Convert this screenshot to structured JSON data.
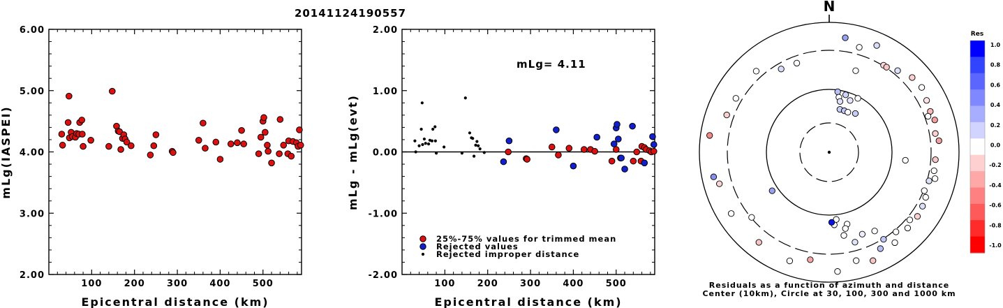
{
  "title": "20141124190557",
  "panel1": {
    "xlabel": "Epicentral distance (km)",
    "ylabel": "mLg(IASPEI)",
    "xlim": [
      0,
      590
    ],
    "ylim": [
      2.0,
      6.0
    ],
    "xticks": [
      {
        "v": 100,
        "t": "100"
      },
      {
        "v": 200,
        "t": "200"
      },
      {
        "v": 300,
        "t": "300"
      },
      {
        "v": 400,
        "t": "400"
      },
      {
        "v": 500,
        "t": "500"
      }
    ],
    "yticks": [
      {
        "v": 2.0,
        "t": "2.00"
      },
      {
        "v": 3.0,
        "t": "3.00"
      },
      {
        "v": 4.0,
        "t": "4.00"
      },
      {
        "v": 5.0,
        "t": "5.00"
      },
      {
        "v": 6.0,
        "t": "6.00"
      }
    ],
    "point_color": "#dd1010",
    "points": [
      [
        30,
        4.29
      ],
      [
        32,
        4.11
      ],
      [
        45,
        4.48
      ],
      [
        47,
        4.91
      ],
      [
        48,
        4.23
      ],
      [
        52,
        4.32
      ],
      [
        55,
        4.25
      ],
      [
        62,
        4.24
      ],
      [
        65,
        4.3
      ],
      [
        70,
        4.29
      ],
      [
        72,
        4.48
      ],
      [
        77,
        4.52
      ],
      [
        78,
        4.29
      ],
      [
        80,
        4.09
      ],
      [
        98,
        4.19
      ],
      [
        140,
        4.09
      ],
      [
        148,
        4.99
      ],
      [
        158,
        4.42
      ],
      [
        162,
        4.34
      ],
      [
        165,
        4.33
      ],
      [
        168,
        4.04
      ],
      [
        172,
        4.22
      ],
      [
        175,
        4.28
      ],
      [
        178,
        4.21
      ],
      [
        182,
        4.16
      ],
      [
        192,
        4.1
      ],
      [
        237,
        3.95
      ],
      [
        245,
        4.1
      ],
      [
        250,
        4.28
      ],
      [
        288,
        4.01
      ],
      [
        290,
        3.99
      ],
      [
        350,
        4.19
      ],
      [
        360,
        4.47
      ],
      [
        365,
        4.06
      ],
      [
        390,
        4.16
      ],
      [
        400,
        3.88
      ],
      [
        425,
        4.13
      ],
      [
        440,
        4.15
      ],
      [
        450,
        4.35
      ],
      [
        455,
        4.13
      ],
      [
        490,
        3.97
      ],
      [
        495,
        4.24
      ],
      [
        500,
        4.5
      ],
      [
        502,
        4.56
      ],
      [
        505,
        4.32
      ],
      [
        510,
        4.11
      ],
      [
        512,
        4.01
      ],
      [
        520,
        3.82
      ],
      [
        538,
        3.97
      ],
      [
        540,
        4.53
      ],
      [
        548,
        4.11
      ],
      [
        558,
        3.97
      ],
      [
        560,
        4.18
      ],
      [
        566,
        3.93
      ],
      [
        570,
        4.17
      ],
      [
        578,
        4.15
      ],
      [
        582,
        4.09
      ],
      [
        585,
        4.36
      ],
      [
        588,
        4.11
      ]
    ]
  },
  "panel2": {
    "xlabel": "Epicentral distance (km)",
    "ylabel": "mLg - mLg(evt)",
    "xlim": [
      0,
      590
    ],
    "ylim": [
      -2.0,
      2.0
    ],
    "xticks": [
      {
        "v": 100,
        "t": "100"
      },
      {
        "v": 200,
        "t": "200"
      },
      {
        "v": 300,
        "t": "300"
      },
      {
        "v": 400,
        "t": "400"
      },
      {
        "v": 500,
        "t": "500"
      }
    ],
    "yticks": [
      {
        "v": -2.0,
        "t": "-2.00"
      },
      {
        "v": -1.0,
        "t": "-1.00"
      },
      {
        "v": 0.0,
        "t": "0.00"
      },
      {
        "v": 1.0,
        "t": "1.00"
      },
      {
        "v": 2.0,
        "t": "2.00"
      }
    ],
    "mlg_label": "mLg= 4.11",
    "red_color": "#dd1010",
    "blue_color": "#1020cc",
    "legend": [
      {
        "kind": "red",
        "label": "25%-75% values for trimmed mean"
      },
      {
        "kind": "blue",
        "label": "Rejected values"
      },
      {
        "kind": "black",
        "label": "Rejected improper distance"
      }
    ],
    "red_points": [
      [
        248,
        0.0
      ],
      [
        290,
        -0.11
      ],
      [
        292,
        -0.12
      ],
      [
        350,
        0.08
      ],
      [
        365,
        -0.05
      ],
      [
        390,
        0.06
      ],
      [
        425,
        0.04
      ],
      [
        440,
        0.04
      ],
      [
        450,
        0.01
      ],
      [
        490,
        -0.15
      ],
      [
        500,
        0.04
      ],
      [
        510,
        -0.1
      ],
      [
        540,
        -0.15
      ],
      [
        548,
        0.0
      ],
      [
        558,
        -0.15
      ],
      [
        560,
        0.09
      ],
      [
        566,
        0.07
      ],
      [
        570,
        0.04
      ],
      [
        578,
        0.02
      ],
      [
        582,
        0.0
      ],
      [
        588,
        0.01
      ]
    ],
    "blue_points": [
      [
        237,
        -0.16
      ],
      [
        250,
        0.18
      ],
      [
        360,
        0.36
      ],
      [
        400,
        -0.23
      ],
      [
        455,
        0.24
      ],
      [
        495,
        0.13
      ],
      [
        500,
        0.39
      ],
      [
        502,
        0.45
      ],
      [
        505,
        0.21
      ],
      [
        512,
        -0.1
      ],
      [
        520,
        -0.28
      ],
      [
        538,
        0.42
      ],
      [
        566,
        -0.18
      ],
      [
        585,
        0.25
      ],
      [
        588,
        0.12
      ]
    ],
    "black_points": [
      [
        30,
        0.18
      ],
      [
        32,
        0.0
      ],
      [
        40,
        0.1
      ],
      [
        45,
        0.37
      ],
      [
        47,
        0.8
      ],
      [
        48,
        0.12
      ],
      [
        52,
        0.21
      ],
      [
        55,
        0.14
      ],
      [
        62,
        0.13
      ],
      [
        65,
        0.19
      ],
      [
        70,
        0.18
      ],
      [
        72,
        0.37
      ],
      [
        77,
        0.41
      ],
      [
        78,
        0.18
      ],
      [
        80,
        -0.02
      ],
      [
        98,
        0.08
      ],
      [
        140,
        -0.02
      ],
      [
        148,
        0.88
      ],
      [
        158,
        0.31
      ],
      [
        162,
        0.23
      ],
      [
        165,
        0.22
      ],
      [
        168,
        -0.07
      ],
      [
        172,
        0.11
      ],
      [
        175,
        0.17
      ],
      [
        178,
        0.1
      ],
      [
        182,
        0.05
      ],
      [
        192,
        -0.01
      ]
    ]
  },
  "polar": {
    "north_label": "N",
    "caption_line1": "Residuals as a function of azimuth and distance",
    "caption_line2": "Center (10km), Circle at 30, 100, 300 and 1000 km",
    "colorbar_title": "Res",
    "colorbar_ticks": [
      "1.0",
      "0.8",
      "0.6",
      "0.4",
      "0.2",
      "0.0",
      "-0.2",
      "-0.4",
      "-0.6",
      "-0.8",
      "-1.0"
    ],
    "stations": [
      {
        "az": 8,
        "d": 0.89,
        "c": "#9aa2f0"
      },
      {
        "az": 16,
        "d": 0.84,
        "c": "#ffffff"
      },
      {
        "az": 24,
        "d": 0.9,
        "c": "#d8dcf8"
      },
      {
        "az": 32,
        "d": 0.79,
        "c": "#fad8d8"
      },
      {
        "az": 34,
        "d": 0.79,
        "c": "#f8c8c8"
      },
      {
        "az": 40,
        "d": 0.82,
        "c": "#dcdff8"
      },
      {
        "az": 48,
        "d": 0.86,
        "c": "#fad0d0"
      },
      {
        "az": 55,
        "d": 0.87,
        "c": "#ffffff"
      },
      {
        "az": 62,
        "d": 0.85,
        "c": "#fae4e4"
      },
      {
        "az": 68,
        "d": 0.84,
        "c": "#f8b8b8"
      },
      {
        "az": 70,
        "d": 0.81,
        "c": "#ffffff"
      },
      {
        "az": 73,
        "d": 0.85,
        "c": "#f4a0a0"
      },
      {
        "az": 80,
        "d": 0.83,
        "c": "#fad0d0"
      },
      {
        "az": 84,
        "d": 0.85,
        "c": "#f0a0a0"
      },
      {
        "az": 94,
        "d": 0.82,
        "c": "#f8c8c8"
      },
      {
        "az": 100,
        "d": 0.82,
        "c": "#ffffff"
      },
      {
        "az": 104,
        "d": 0.84,
        "c": "#ffffff"
      },
      {
        "az": 106,
        "d": 0.8,
        "c": "#dde0f8"
      },
      {
        "az": 112,
        "d": 0.79,
        "c": "#ffffff"
      },
      {
        "az": 115,
        "d": 0.82,
        "c": "#ffffff"
      },
      {
        "az": 120,
        "d": 0.83,
        "c": "#dcdff8"
      },
      {
        "az": 126,
        "d": 0.84,
        "c": "#fad0d0"
      },
      {
        "az": 130,
        "d": 0.81,
        "c": "#ffffff"
      },
      {
        "az": 134,
        "d": 0.84,
        "c": "#ffffff"
      },
      {
        "az": 140,
        "d": 0.8,
        "c": "#ffffff"
      },
      {
        "az": 144,
        "d": 0.86,
        "c": "#ffffff"
      },
      {
        "az": 148,
        "d": 0.79,
        "c": "#c0c6f6"
      },
      {
        "az": 152,
        "d": 0.84,
        "c": "#b8bff4"
      },
      {
        "az": 158,
        "d": 0.9,
        "c": "#f8c4c4"
      },
      {
        "az": 166,
        "d": 0.86,
        "c": "#ffffff"
      },
      {
        "az": 150,
        "d": 0.7,
        "c": "#ffffff"
      },
      {
        "az": 158,
        "d": 0.68,
        "c": "#eceefa"
      },
      {
        "az": 164,
        "d": 0.72,
        "c": "#dfe2f8"
      },
      {
        "az": 170,
        "d": 0.65,
        "c": "#ffffff"
      },
      {
        "az": 166,
        "d": 0.57,
        "c": "#ffffff"
      },
      {
        "az": 168,
        "d": 0.6,
        "c": "#ffffff"
      },
      {
        "az": 176,
        "d": 0.56,
        "c": "#ffffff"
      },
      {
        "az": 174,
        "d": 0.52,
        "c": "#ffffff"
      },
      {
        "az": 178,
        "d": 0.54,
        "c": "#0a14e6"
      },
      {
        "az": 176,
        "d": 0.92,
        "c": "#ffffff"
      },
      {
        "az": 190,
        "d": 0.84,
        "c": "#f4a8a8"
      },
      {
        "az": 200,
        "d": 0.89,
        "c": "#ffffff"
      },
      {
        "az": 218,
        "d": 0.88,
        "c": "#f8c4c4"
      },
      {
        "az": 230,
        "d": 0.78,
        "c": "#ffffff"
      },
      {
        "az": 238,
        "d": 0.89,
        "c": "#ffffff"
      },
      {
        "az": 236,
        "d": 0.53,
        "c": "#9aa0f0"
      },
      {
        "az": 254,
        "d": 0.88,
        "c": "#f8d4d4"
      },
      {
        "az": 258,
        "d": 0.91,
        "c": "#8890ee"
      },
      {
        "az": 278,
        "d": 0.93,
        "c": "#f08888"
      },
      {
        "az": 290,
        "d": 0.84,
        "c": "#f8d0d0"
      },
      {
        "az": 300,
        "d": 0.83,
        "c": "#ffffff"
      },
      {
        "az": 318,
        "d": 0.84,
        "c": "#ffffff"
      },
      {
        "az": 330,
        "d": 0.74,
        "c": "#d8dcf8"
      },
      {
        "az": 340,
        "d": 0.73,
        "c": "#ffffff"
      },
      {
        "az": 18,
        "d": 0.66,
        "c": "#ffffff"
      },
      {
        "az": 8,
        "d": 0.47,
        "c": "#b8bff4"
      },
      {
        "az": 10,
        "d": 0.43,
        "c": "#ffffff"
      },
      {
        "az": 12,
        "d": 0.4,
        "c": "#dde0f8"
      },
      {
        "az": 14,
        "d": 0.34,
        "c": "#c8cdf6"
      },
      {
        "az": 16,
        "d": 0.46,
        "c": "#d0d4f8"
      },
      {
        "az": 20,
        "d": 0.34,
        "c": "#c0c6f6"
      },
      {
        "az": 22,
        "d": 0.43,
        "c": "#e4e6fa"
      },
      {
        "az": 25,
        "d": 0.34,
        "c": "#ffffff"
      },
      {
        "az": 28,
        "d": 0.47,
        "c": "#ffffff"
      },
      {
        "az": 34,
        "d": 0.36,
        "c": "#c8cdf6"
      },
      {
        "az": 96,
        "d": 0.59,
        "c": "#ffffff"
      }
    ]
  }
}
